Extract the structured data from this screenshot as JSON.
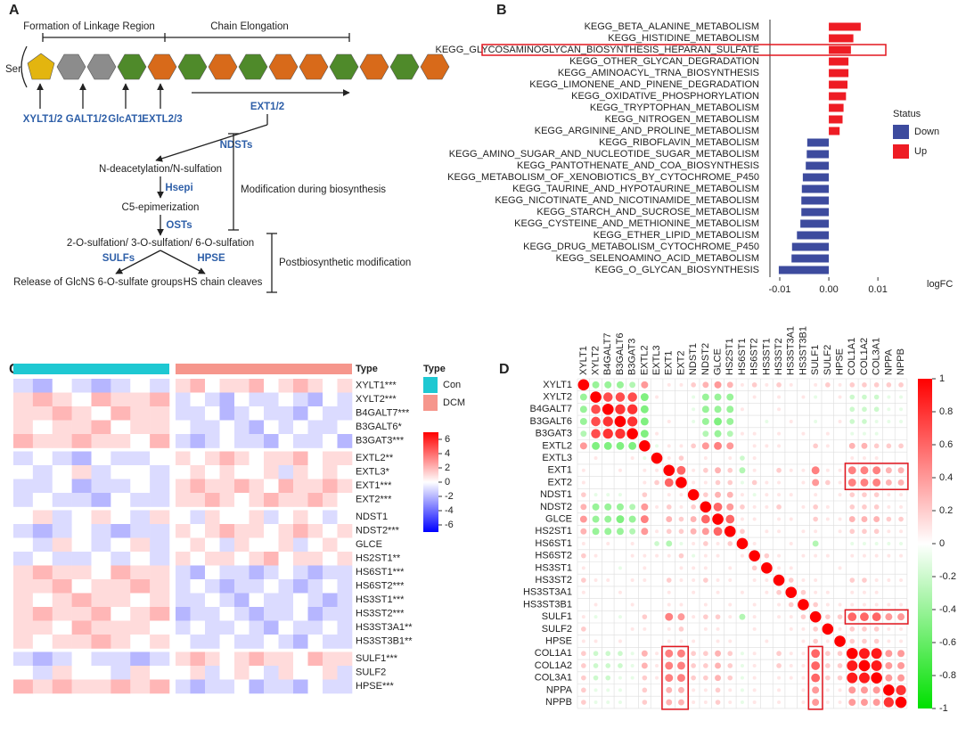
{
  "diagram": {
    "label": "A",
    "start": "Ser",
    "stages": [
      "Formation of Linkage Region",
      "Chain Elongation"
    ],
    "enzymes": [
      "XYLT1/2",
      "GALT1/2",
      "GlcAT1",
      "EXTL2/3",
      "EXT1/2",
      "NDSTs",
      "Hsepi",
      "OSTs",
      "SULFs",
      "HPSE"
    ],
    "steps": [
      "N-deacetylation/N-sulfation",
      "C5-epimerization",
      "2-O-sulfation/ 3-O-sulfation/ 6-O-sulfation",
      "Release of GlcNS 6-O-sulfate groups",
      "HS chain cleaves"
    ],
    "phases": [
      "Modification during biosynthesis",
      "Postbiosynthetic modification"
    ]
  },
  "chart_data": [
    {
      "type": "barh",
      "label": "B",
      "categories": [
        "KEGG_BETA_ALANINE_METABOLISM",
        "KEGG_HISTIDINE_METABOLISM",
        "KEGG_GLYCOSAMINOGLYCAN_BIOSYNTHESIS_HEPARAN_SULFATE",
        "KEGG_OTHER_GLYCAN_DEGRADATION",
        "KEGG_AMINOACYL_TRNA_BIOSYNTHESIS",
        "KEGG_LIMONENE_AND_PINENE_DEGRADATION",
        "KEGG_OXIDATIVE_PHOSPHORYLATION",
        "KEGG_TRYPTOPHAN_METABOLISM",
        "KEGG_NITROGEN_METABOLISM",
        "KEGG_ARGININE_AND_PROLINE_METABOLISM",
        "KEGG_RIBOFLAVIN_METABOLISM",
        "KEGG_AMINO_SUGAR_AND_NUCLEOTIDE_SUGAR_METABOLISM",
        "KEGG_PANTOTHENATE_AND_COA_BIOSYNTHESIS",
        "KEGG_METABOLISM_OF_XENOBIOTICS_BY_CYTOCHROME_P450",
        "KEGG_TAURINE_AND_HYPOTAURINE_METABOLISM",
        "KEGG_NICOTINATE_AND_NICOTINAMIDE_METABOLISM",
        "KEGG_STARCH_AND_SUCROSE_METABOLISM",
        "KEGG_CYSTEINE_AND_METHIONINE_METABOLISM",
        "KEGG_ETHER_LIPID_METABOLISM",
        "KEGG_DRUG_METABOLISM_CYTOCHROME_P450",
        "KEGG_SELENOAMINO_ACID_METABOLISM",
        "KEGG_O_GLYCAN_BIOSYNTHESIS"
      ],
      "series": [
        {
          "name": "Down",
          "color": "#3d4b9e",
          "values": [
            null,
            null,
            null,
            null,
            null,
            null,
            null,
            null,
            null,
            null,
            -0.0044,
            -0.0045,
            -0.0047,
            -0.0053,
            -0.0055,
            -0.0056,
            -0.0056,
            -0.0058,
            -0.0065,
            -0.0075,
            -0.0076,
            -0.0102
          ]
        },
        {
          "name": "Up",
          "color": "#ee1c24",
          "values": [
            0.0065,
            0.005,
            0.0045,
            0.004,
            0.004,
            0.0038,
            0.0035,
            0.003,
            0.0028,
            0.0022,
            null,
            null,
            null,
            null,
            null,
            null,
            null,
            null,
            null,
            null,
            null,
            null
          ]
        }
      ],
      "xlim": [
        -0.012,
        0.0127
      ],
      "xticks": [
        -0.01,
        {
          "value": 0,
          "label": "0.00"
        },
        0.01
      ],
      "xlabel": "logFC",
      "legend_title": "Status",
      "legend": "right"
    },
    {
      "type": "heatmap",
      "label": "C",
      "annotation_label": "Type",
      "legend_title": "Type",
      "rows": [
        "XYLT1***",
        "XYLT2***",
        "B4GALT7***",
        "B3GALT6*",
        "B3GAT3***",
        "EXTL2**",
        "EXTL3*",
        "EXT1***",
        "EXT2***",
        "NDST1",
        "NDST2***",
        "GLCE",
        "HS2ST1**",
        "HS6ST1***",
        "HS6ST2***",
        "HS3ST1***",
        "HS3ST2***",
        "HS3ST3A1**",
        "HS3ST3B1**",
        "SULF1***",
        "SULF2",
        "HPSE***"
      ],
      "series": [
        {
          "name": "Con",
          "color": "#1ec8d2",
          "values": [
            [
              -1,
              -2,
              0,
              -1,
              -2,
              -1,
              0,
              -1
            ],
            [
              1,
              2,
              1,
              0,
              2,
              1,
              1,
              2
            ],
            [
              1,
              1,
              2,
              1,
              0,
              2,
              1,
              1
            ],
            [
              1,
              0,
              1,
              1,
              2,
              0,
              1,
              1
            ],
            [
              2,
              1,
              1,
              2,
              1,
              1,
              0,
              2
            ],
            [
              -1,
              0,
              -1,
              -2,
              0,
              -1,
              -1,
              0
            ],
            [
              0,
              -1,
              0,
              1,
              -1,
              0,
              0,
              -1
            ],
            [
              -1,
              -1,
              0,
              -2,
              -1,
              -1,
              0,
              -1
            ],
            [
              -1,
              0,
              -1,
              -1,
              -2,
              0,
              -1,
              -1
            ],
            [
              0,
              1,
              -1,
              0,
              1,
              0,
              -1,
              1
            ],
            [
              -1,
              -2,
              -1,
              0,
              -1,
              -2,
              -1,
              -1
            ],
            [
              0,
              -1,
              1,
              0,
              -1,
              0,
              1,
              -1
            ],
            [
              -1,
              0,
              -1,
              -1,
              0,
              -1,
              0,
              -1
            ],
            [
              1,
              2,
              1,
              1,
              0,
              2,
              1,
              1
            ],
            [
              1,
              1,
              2,
              0,
              1,
              1,
              2,
              1
            ],
            [
              1,
              0,
              1,
              2,
              1,
              1,
              0,
              1
            ],
            [
              1,
              2,
              1,
              1,
              2,
              0,
              1,
              2
            ],
            [
              1,
              1,
              0,
              2,
              1,
              1,
              1,
              0
            ],
            [
              1,
              0,
              1,
              1,
              2,
              1,
              0,
              1
            ],
            [
              -1,
              -2,
              -1,
              0,
              -1,
              -1,
              -2,
              -1
            ],
            [
              0,
              -1,
              1,
              0,
              0,
              -1,
              1,
              0
            ],
            [
              2,
              1,
              2,
              1,
              1,
              2,
              1,
              2
            ]
          ]
        },
        {
          "name": "DCM",
          "color": "#f6968c",
          "values": [
            [
              1,
              2,
              0,
              1,
              1,
              2,
              0,
              1,
              2,
              1,
              0,
              1
            ],
            [
              -1,
              0,
              -1,
              -2,
              0,
              -1,
              -1,
              0,
              -1,
              -2,
              0,
              -1
            ],
            [
              -1,
              -1,
              0,
              -2,
              -1,
              0,
              -1,
              -1,
              -2,
              0,
              -1,
              -1
            ],
            [
              0,
              -1,
              -1,
              0,
              -1,
              -2,
              0,
              -1,
              0,
              -1,
              -1,
              0
            ],
            [
              -1,
              -2,
              -1,
              0,
              -1,
              -1,
              -2,
              0,
              -1,
              -1,
              0,
              -2
            ],
            [
              1,
              0,
              1,
              2,
              1,
              0,
              1,
              1,
              2,
              0,
              1,
              1
            ],
            [
              0,
              1,
              0,
              1,
              0,
              0,
              1,
              -1,
              1,
              0,
              1,
              0
            ],
            [
              1,
              2,
              1,
              1,
              2,
              1,
              0,
              2,
              1,
              1,
              2,
              1
            ],
            [
              1,
              1,
              2,
              1,
              0,
              1,
              2,
              1,
              1,
              2,
              1,
              0
            ],
            [
              0,
              -1,
              1,
              0,
              0,
              1,
              -1,
              0,
              1,
              0,
              -1,
              0
            ],
            [
              1,
              0,
              1,
              2,
              1,
              1,
              0,
              1,
              2,
              1,
              0,
              1
            ],
            [
              0,
              1,
              0,
              -1,
              1,
              0,
              0,
              1,
              -1,
              0,
              1,
              0
            ],
            [
              1,
              0,
              1,
              1,
              0,
              1,
              2,
              0,
              1,
              1,
              0,
              1
            ],
            [
              -1,
              -2,
              0,
              -1,
              -1,
              -2,
              -1,
              0,
              -1,
              -2,
              -1,
              -1
            ],
            [
              -1,
              0,
              -1,
              -2,
              -1,
              -1,
              0,
              -1,
              -2,
              -1,
              0,
              -1
            ],
            [
              -1,
              -1,
              0,
              -1,
              -2,
              0,
              -1,
              -1,
              0,
              -1,
              -2,
              -1
            ],
            [
              -2,
              -1,
              -1,
              0,
              -1,
              -2,
              -1,
              -1,
              0,
              -2,
              -1,
              -1
            ],
            [
              -1,
              0,
              -1,
              -1,
              0,
              -1,
              -2,
              0,
              -1,
              -1,
              0,
              -1
            ],
            [
              0,
              -1,
              -1,
              0,
              -1,
              -1,
              0,
              -1,
              -2,
              0,
              -1,
              -1
            ],
            [
              1,
              2,
              1,
              0,
              1,
              2,
              1,
              1,
              0,
              2,
              1,
              1
            ],
            [
              0,
              1,
              -1,
              0,
              1,
              0,
              -1,
              1,
              0,
              0,
              1,
              -1
            ],
            [
              -1,
              -2,
              -1,
              -1,
              0,
              -2,
              -1,
              -1,
              -2,
              0,
              -1,
              -1
            ]
          ]
        }
      ],
      "colors": [
        "#0000ff",
        "#ffffff",
        "#ff0000"
      ],
      "ylim": [
        -7,
        7
      ],
      "yticks": [
        6,
        4,
        2,
        0,
        -2,
        -4,
        -6
      ]
    },
    {
      "type": "correlation",
      "label": "D",
      "categories": [
        "XYLT1",
        "XYLT2",
        "B4GALT7",
        "B3GALT6",
        "B3GAT3",
        "EXTL2",
        "EXTL3",
        "EXT1",
        "EXT2",
        "NDST1",
        "NDST2",
        "GLCE",
        "HS2ST1",
        "HS6ST1",
        "HS6ST2",
        "HS3ST1",
        "HS3ST2",
        "HS3ST3A1",
        "HS3ST3B1",
        "SULF1",
        "SULF2",
        "HPSE",
        "COL1A1",
        "COL1A2",
        "COL3A1",
        "NPPA",
        "NPPB"
      ],
      "values": [
        [
          1
        ],
        [
          -0.4,
          1
        ],
        [
          -0.4,
          0.7,
          1
        ],
        [
          -0.4,
          0.7,
          0.8,
          1
        ],
        [
          -0.3,
          0.7,
          0.8,
          0.8,
          1
        ],
        [
          0.4,
          -0.5,
          -0.5,
          -0.5,
          -0.5,
          1
        ],
        [
          0,
          0.1,
          0,
          0,
          0.1,
          -0.1,
          1
        ],
        [
          0.1,
          0,
          0,
          0.1,
          0,
          0.1,
          0.1,
          1
        ],
        [
          0.1,
          0,
          0,
          0,
          0,
          0.1,
          0.2,
          0.6,
          1
        ],
        [
          0.2,
          -0.1,
          -0.1,
          -0.1,
          0,
          0.2,
          0,
          0.1,
          0.1,
          1
        ],
        [
          0.3,
          -0.4,
          -0.4,
          -0.4,
          -0.3,
          0.4,
          0.1,
          0.2,
          0.1,
          0.2,
          1
        ],
        [
          0.4,
          -0.4,
          -0.4,
          -0.5,
          -0.4,
          0.5,
          0,
          0.3,
          0.2,
          0.3,
          0.6,
          1
        ],
        [
          0.3,
          -0.4,
          -0.4,
          -0.4,
          -0.3,
          0.4,
          0.1,
          0.2,
          0.2,
          0.3,
          0.4,
          0.6,
          1
        ],
        [
          0.1,
          0,
          0.1,
          0,
          0.1,
          0,
          -0.2,
          -0.3,
          -0.1,
          0.1,
          0.2,
          0.1,
          0.2,
          1
        ],
        [
          0.2,
          0.1,
          0,
          0,
          0.1,
          0.1,
          0.1,
          0.1,
          0.2,
          -0.1,
          0.1,
          0.1,
          0,
          0.1,
          1
        ],
        [
          0.1,
          0,
          0,
          -0.1,
          0,
          0.1,
          0,
          0,
          0.1,
          0.1,
          0.1,
          0,
          0.1,
          0,
          0.2,
          1
        ],
        [
          0.2,
          0.1,
          0.1,
          0,
          0.1,
          0.1,
          0,
          0.2,
          0.1,
          0.1,
          0.2,
          0.1,
          0.1,
          0,
          0.1,
          0.1,
          1
        ],
        [
          0.1,
          0,
          0,
          0.1,
          0,
          0,
          0,
          0.1,
          0,
          0.1,
          0,
          0.1,
          0,
          0.1,
          0,
          0.1,
          0.2,
          1
        ],
        [
          0,
          0.1,
          0,
          0,
          0.1,
          0,
          0,
          0.1,
          0.1,
          0,
          0.1,
          0,
          0.1,
          0,
          0.1,
          0,
          0.1,
          0.2,
          1
        ],
        [
          0.1,
          -0.1,
          0,
          -0.1,
          0,
          0.2,
          0,
          0.5,
          0.4,
          0.1,
          0.2,
          0.2,
          0.1,
          -0.3,
          0.1,
          0,
          0.1,
          0.1,
          0.2,
          1
        ],
        [
          0.2,
          0,
          0,
          0,
          0.1,
          0.1,
          0,
          0.1,
          0.2,
          0,
          0.1,
          0.1,
          0,
          0,
          0.1,
          0,
          0,
          0.1,
          0.1,
          0.2,
          1
        ],
        [
          0.1,
          0.1,
          0,
          0.1,
          0,
          0,
          0,
          0.1,
          0.1,
          0.1,
          0,
          0.1,
          0.1,
          0,
          0,
          0.1,
          0,
          0,
          0.1,
          0.2,
          0.1,
          1
        ],
        [
          0.2,
          -0.2,
          -0.2,
          -0.2,
          -0.1,
          0.3,
          0.1,
          0.5,
          0.5,
          0.2,
          0.2,
          0.3,
          0.2,
          -0.1,
          0.1,
          0,
          0.2,
          0.1,
          0.1,
          0.6,
          0.2,
          0.2,
          1
        ],
        [
          0.2,
          -0.2,
          -0.2,
          -0.2,
          -0.1,
          0.3,
          0.1,
          0.5,
          0.5,
          0.2,
          0.2,
          0.3,
          0.2,
          -0.1,
          0.1,
          0,
          0.2,
          0.1,
          0.1,
          0.6,
          0.2,
          0.2,
          0.9,
          1
        ],
        [
          0.2,
          -0.2,
          -0.2,
          -0.1,
          -0.1,
          0.2,
          0.1,
          0.5,
          0.5,
          0.2,
          0.2,
          0.3,
          0.2,
          -0.1,
          0.1,
          0,
          0.1,
          0.1,
          0.1,
          0.6,
          0.2,
          0.2,
          0.9,
          0.9,
          1
        ],
        [
          0.2,
          -0.1,
          -0.1,
          -0.1,
          0,
          0.2,
          0,
          0.3,
          0.3,
          0.1,
          0.1,
          0.2,
          0.1,
          -0.1,
          0.1,
          0,
          0.1,
          0,
          0.1,
          0.4,
          0.1,
          0.1,
          0.4,
          0.4,
          0.4,
          1
        ],
        [
          0.2,
          -0.1,
          -0.1,
          -0.1,
          0,
          0.2,
          0,
          0.3,
          0.3,
          0.1,
          0.1,
          0.2,
          0.1,
          -0.1,
          0.1,
          0,
          0.1,
          0,
          0.1,
          0.4,
          0.1,
          0.1,
          0.4,
          0.4,
          0.4,
          0.8,
          1
        ]
      ],
      "colors": [
        "#00e000",
        "#ffffff",
        "#ff0000"
      ],
      "ylim": [
        -1,
        1
      ],
      "yticks": [
        1,
        0.8,
        0.6,
        0.4,
        0.2,
        0,
        -0.2,
        -0.4,
        -0.6,
        -0.8,
        -1
      ]
    }
  ]
}
